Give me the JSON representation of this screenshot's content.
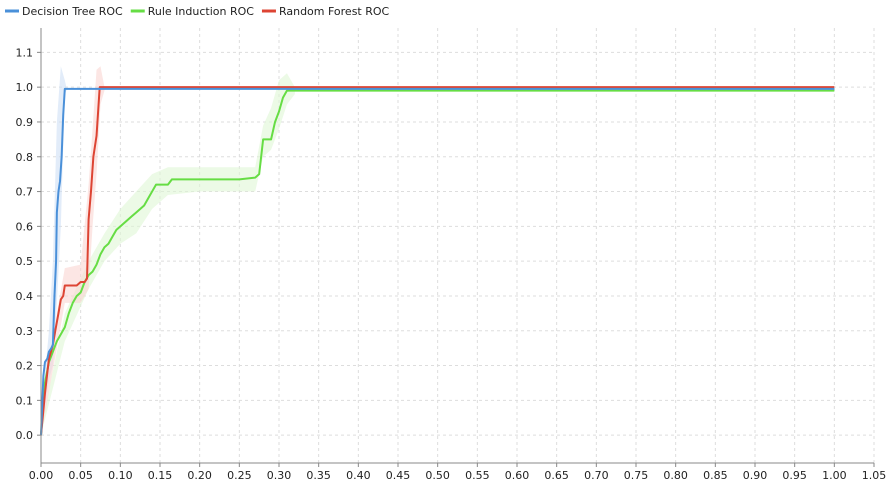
{
  "chart_data": {
    "type": "line",
    "title": "",
    "xlabel": "",
    "ylabel": "",
    "xlim": [
      0.0,
      1.05
    ],
    "ylim": [
      -0.08,
      1.17
    ],
    "xticks": [
      "0.00",
      "0.05",
      "0.10",
      "0.15",
      "0.20",
      "0.25",
      "0.30",
      "0.35",
      "0.40",
      "0.45",
      "0.50",
      "0.55",
      "0.60",
      "0.65",
      "0.70",
      "0.75",
      "0.80",
      "0.85",
      "0.90",
      "0.95",
      "1.00",
      "1.05"
    ],
    "yticks": [
      "0.0",
      "0.1",
      "0.2",
      "0.3",
      "0.4",
      "0.5",
      "0.6",
      "0.7",
      "0.8",
      "0.9",
      "1.0",
      "1.1"
    ],
    "grid": true,
    "legend_position": "top-left",
    "series": [
      {
        "name": "Decision Tree ROC",
        "color": "#4a90d9",
        "band_color": "#cfe0f5",
        "points": [
          [
            0,
            0
          ],
          [
            0.003,
            0.17
          ],
          [
            0.005,
            0.21
          ],
          [
            0.008,
            0.22
          ],
          [
            0.01,
            0.24
          ],
          [
            0.013,
            0.25
          ],
          [
            0.015,
            0.26
          ],
          [
            0.017,
            0.4
          ],
          [
            0.019,
            0.5
          ],
          [
            0.02,
            0.64
          ],
          [
            0.022,
            0.7
          ],
          [
            0.024,
            0.73
          ],
          [
            0.026,
            0.8
          ],
          [
            0.028,
            0.92
          ],
          [
            0.03,
            0.995
          ],
          [
            0.5,
            0.995
          ],
          [
            1.0,
            0.995
          ]
        ],
        "band_upper": [
          [
            0,
            0.05
          ],
          [
            0.01,
            0.3
          ],
          [
            0.015,
            0.5
          ],
          [
            0.02,
            0.9
          ],
          [
            0.025,
            1.06
          ],
          [
            0.03,
            1.02
          ],
          [
            0.032,
            1.0
          ]
        ],
        "band_lower": [
          [
            0,
            0
          ],
          [
            0.01,
            0.16
          ],
          [
            0.015,
            0.2
          ],
          [
            0.02,
            0.38
          ],
          [
            0.025,
            0.6
          ],
          [
            0.03,
            0.98
          ],
          [
            0.032,
            0.99
          ]
        ]
      },
      {
        "name": "Rule Induction ROC",
        "color": "#66dd44",
        "band_color": "#dff7d6",
        "points": [
          [
            0,
            0
          ],
          [
            0.005,
            0.15
          ],
          [
            0.01,
            0.21
          ],
          [
            0.015,
            0.24
          ],
          [
            0.02,
            0.27
          ],
          [
            0.025,
            0.29
          ],
          [
            0.03,
            0.31
          ],
          [
            0.035,
            0.35
          ],
          [
            0.04,
            0.38
          ],
          [
            0.045,
            0.4
          ],
          [
            0.05,
            0.41
          ],
          [
            0.055,
            0.44
          ],
          [
            0.06,
            0.46
          ],
          [
            0.065,
            0.47
          ],
          [
            0.07,
            0.49
          ],
          [
            0.075,
            0.52
          ],
          [
            0.08,
            0.54
          ],
          [
            0.085,
            0.55
          ],
          [
            0.09,
            0.57
          ],
          [
            0.095,
            0.59
          ],
          [
            0.1,
            0.6
          ],
          [
            0.105,
            0.61
          ],
          [
            0.11,
            0.62
          ],
          [
            0.115,
            0.63
          ],
          [
            0.12,
            0.64
          ],
          [
            0.125,
            0.65
          ],
          [
            0.13,
            0.66
          ],
          [
            0.135,
            0.68
          ],
          [
            0.14,
            0.7
          ],
          [
            0.145,
            0.72
          ],
          [
            0.16,
            0.72
          ],
          [
            0.165,
            0.735
          ],
          [
            0.2,
            0.735
          ],
          [
            0.25,
            0.735
          ],
          [
            0.27,
            0.74
          ],
          [
            0.275,
            0.75
          ],
          [
            0.28,
            0.85
          ],
          [
            0.29,
            0.85
          ],
          [
            0.295,
            0.9
          ],
          [
            0.3,
            0.93
          ],
          [
            0.305,
            0.97
          ],
          [
            0.31,
            0.99
          ],
          [
            0.5,
            0.99
          ],
          [
            1.0,
            0.99
          ]
        ],
        "band_upper": [
          [
            0,
            0.02
          ],
          [
            0.03,
            0.35
          ],
          [
            0.06,
            0.5
          ],
          [
            0.08,
            0.58
          ],
          [
            0.1,
            0.65
          ],
          [
            0.12,
            0.7
          ],
          [
            0.14,
            0.75
          ],
          [
            0.16,
            0.77
          ],
          [
            0.2,
            0.77
          ],
          [
            0.27,
            0.77
          ],
          [
            0.28,
            0.89
          ],
          [
            0.29,
            0.94
          ],
          [
            0.3,
            1.02
          ],
          [
            0.31,
            1.04
          ],
          [
            0.32,
            1.0
          ]
        ],
        "band_lower": [
          [
            0,
            0
          ],
          [
            0.03,
            0.27
          ],
          [
            0.06,
            0.42
          ],
          [
            0.08,
            0.5
          ],
          [
            0.1,
            0.55
          ],
          [
            0.12,
            0.58
          ],
          [
            0.14,
            0.65
          ],
          [
            0.16,
            0.69
          ],
          [
            0.2,
            0.7
          ],
          [
            0.27,
            0.7
          ],
          [
            0.28,
            0.8
          ],
          [
            0.29,
            0.82
          ],
          [
            0.3,
            0.88
          ],
          [
            0.31,
            0.95
          ],
          [
            0.32,
            0.98
          ]
        ]
      },
      {
        "name": "Random Forest ROC",
        "color": "#dd4433",
        "band_color": "#fad6d2",
        "points": [
          [
            0,
            0
          ],
          [
            0.005,
            0.12
          ],
          [
            0.01,
            0.22
          ],
          [
            0.015,
            0.26
          ],
          [
            0.018,
            0.3
          ],
          [
            0.022,
            0.35
          ],
          [
            0.025,
            0.39
          ],
          [
            0.028,
            0.4
          ],
          [
            0.03,
            0.43
          ],
          [
            0.045,
            0.43
          ],
          [
            0.05,
            0.44
          ],
          [
            0.055,
            0.44
          ],
          [
            0.058,
            0.45
          ],
          [
            0.06,
            0.62
          ],
          [
            0.063,
            0.7
          ],
          [
            0.066,
            0.8
          ],
          [
            0.068,
            0.83
          ],
          [
            0.07,
            0.86
          ],
          [
            0.072,
            0.93
          ],
          [
            0.074,
            1.0
          ],
          [
            0.5,
            1.0
          ],
          [
            1.0,
            1.0
          ]
        ],
        "band_upper": [
          [
            0,
            0.02
          ],
          [
            0.02,
            0.35
          ],
          [
            0.03,
            0.48
          ],
          [
            0.05,
            0.49
          ],
          [
            0.06,
            0.72
          ],
          [
            0.065,
            0.88
          ],
          [
            0.07,
            1.05
          ],
          [
            0.075,
            1.06
          ],
          [
            0.08,
            1.0
          ]
        ],
        "band_lower": [
          [
            0,
            0
          ],
          [
            0.02,
            0.25
          ],
          [
            0.03,
            0.38
          ],
          [
            0.05,
            0.38
          ],
          [
            0.06,
            0.42
          ],
          [
            0.065,
            0.6
          ],
          [
            0.07,
            0.75
          ],
          [
            0.075,
            0.95
          ],
          [
            0.08,
            0.99
          ]
        ]
      }
    ]
  }
}
